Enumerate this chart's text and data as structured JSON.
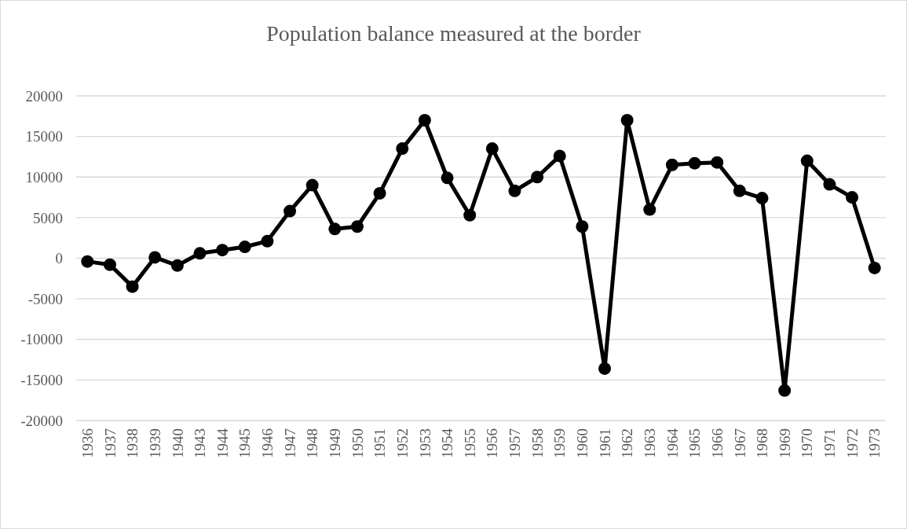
{
  "chart_data": {
    "type": "line",
    "title": "Population balance measured at the border",
    "categories": [
      "1936",
      "1937",
      "1938",
      "1939",
      "1940",
      "1943",
      "1944",
      "1945",
      "1946",
      "1947",
      "1948",
      "1949",
      "1950",
      "1951",
      "1952",
      "1953",
      "1954",
      "1955",
      "1956",
      "1957",
      "1958",
      "1959",
      "1960",
      "1961",
      "1962",
      "1963",
      "1964",
      "1965",
      "1966",
      "1967",
      "1968",
      "1969",
      "1970",
      "1971",
      "1972",
      "1973"
    ],
    "series": [
      {
        "color": "#000000",
        "values": [
          -400,
          -800,
          -3500,
          100,
          -900,
          600,
          1000,
          1400,
          2100,
          5800,
          9000,
          3600,
          3900,
          8000,
          13500,
          17000,
          9900,
          5300,
          13500,
          8300,
          10000,
          12600,
          3900,
          -13600,
          17000,
          6000,
          11500,
          11700,
          11800,
          8300,
          7400,
          -16300,
          12000,
          9100,
          7500,
          -1200
        ]
      }
    ],
    "ylim": [
      -20000,
      20000
    ],
    "yticks": [
      -20000,
      -15000,
      -10000,
      -5000,
      0,
      5000,
      10000,
      15000,
      20000
    ],
    "grid": "y",
    "marker": "circle",
    "line_style": "solid"
  }
}
